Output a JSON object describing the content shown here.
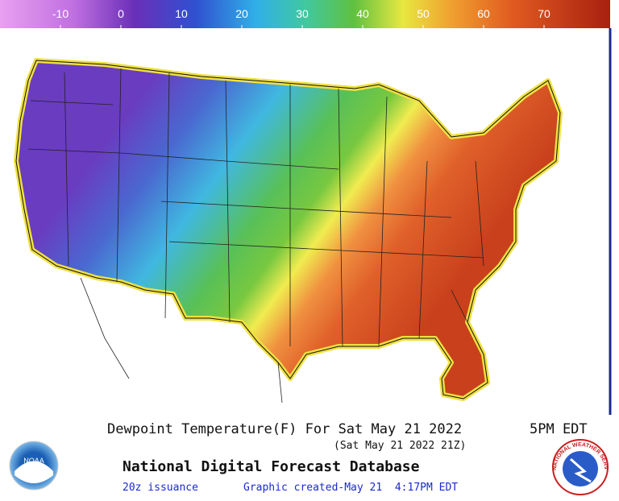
{
  "colorbar": {
    "lim": [
      -20,
      80
    ],
    "ticks": [
      -10,
      0,
      10,
      20,
      30,
      40,
      50,
      60,
      70
    ]
  },
  "map": {
    "title": "Dewpoint Temperature(F) For Sat May 21 2022",
    "time": "5PM EDT",
    "valid_utc": "(Sat May 21 2022 21Z)",
    "database": "National Digital Forecast Database",
    "issuance": "20z issuance",
    "created": "Graphic created-May 21  4:17PM EDT"
  },
  "logos": {
    "left": "NOAA",
    "right": "NATIONAL WEATHER SERVICE"
  }
}
